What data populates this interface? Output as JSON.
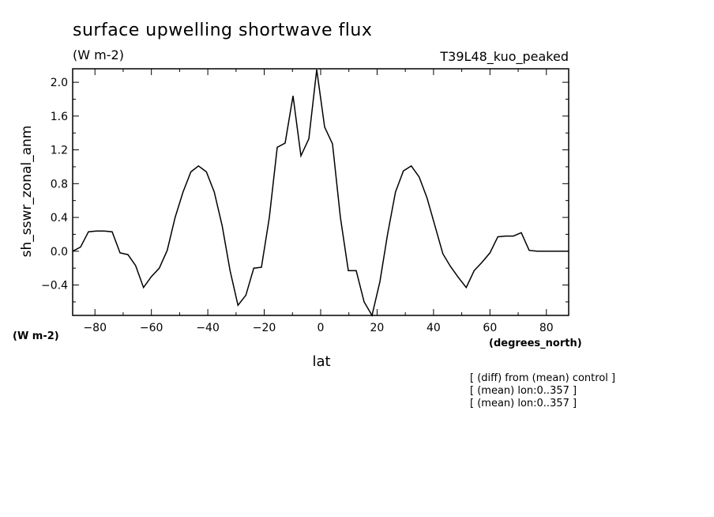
{
  "chart_data": {
    "type": "line",
    "title": "surface upwelling shortwave flux",
    "title_units": "(W m-2)",
    "experiment": "T39L48_kuo_peaked",
    "ylabel": "sh_sswr_zonal_anm",
    "ylabel_units": "(W m-2)",
    "xlabel": "lat",
    "xlabel_units": "(degrees_north)",
    "xlim": [
      -87.9,
      87.9
    ],
    "ylim": [
      -0.76,
      2.16
    ],
    "xticks": [
      -80,
      -60,
      -40,
      -20,
      0,
      20,
      40,
      60,
      80
    ],
    "xtick_labels": [
      "-80",
      "-60",
      "-40",
      "-20",
      "0",
      "20",
      "40",
      "60",
      "80"
    ],
    "yticks": [
      -0.4,
      0.0,
      0.4,
      0.8,
      1.2,
      1.6,
      2.0
    ],
    "ytick_labels": [
      "-0.4",
      "0.0",
      "0.4",
      "0.8",
      "1.2",
      "1.6",
      "2.0"
    ],
    "notes": [
      "[ (diff) from (mean) control ]",
      "[ (mean) lon:0..357 ]",
      "[ (mean) lon:0..357 ]"
    ],
    "series": [
      {
        "x": [
          -87.9,
          -85.1,
          -82.3,
          -79.5,
          -76.7,
          -73.9,
          -71.1,
          -68.3,
          -65.6,
          -62.8,
          -60.0,
          -57.2,
          -54.4,
          -51.6,
          -48.8,
          -46.0,
          -43.3,
          -40.5,
          -37.7,
          -34.9,
          -32.1,
          -29.3,
          -26.5,
          -23.7,
          -21.0,
          -18.2,
          -15.4,
          -12.6,
          -9.8,
          -7.0,
          -4.2,
          -1.4,
          1.4,
          4.2,
          7.0,
          9.8,
          12.6,
          15.4,
          18.2,
          21.0,
          23.7,
          26.5,
          29.3,
          32.1,
          34.9,
          37.7,
          40.5,
          43.3,
          46.0,
          48.8,
          51.6,
          54.4,
          57.2,
          60.0,
          62.8,
          65.6,
          68.3,
          71.1,
          73.9,
          76.7,
          79.5,
          82.3,
          85.1,
          87.9
        ],
        "y": [
          0.0,
          0.05,
          0.23,
          0.24,
          0.24,
          0.23,
          -0.02,
          -0.04,
          -0.17,
          -0.43,
          -0.3,
          -0.2,
          0.01,
          0.4,
          0.7,
          0.94,
          1.01,
          0.94,
          0.7,
          0.3,
          -0.23,
          -0.64,
          -0.52,
          -0.2,
          -0.19,
          0.4,
          1.23,
          1.28,
          1.84,
          1.13,
          1.33,
          2.15,
          1.47,
          1.27,
          0.4,
          -0.23,
          -0.23,
          -0.6,
          -0.76,
          -0.36,
          0.2,
          0.7,
          0.95,
          1.01,
          0.88,
          0.63,
          0.3,
          -0.03,
          -0.18,
          -0.31,
          -0.43,
          -0.23,
          -0.13,
          -0.02,
          0.17,
          0.18,
          0.18,
          0.22,
          0.01,
          0.0,
          0.0,
          0.0,
          0.0,
          0.0
        ]
      }
    ]
  }
}
